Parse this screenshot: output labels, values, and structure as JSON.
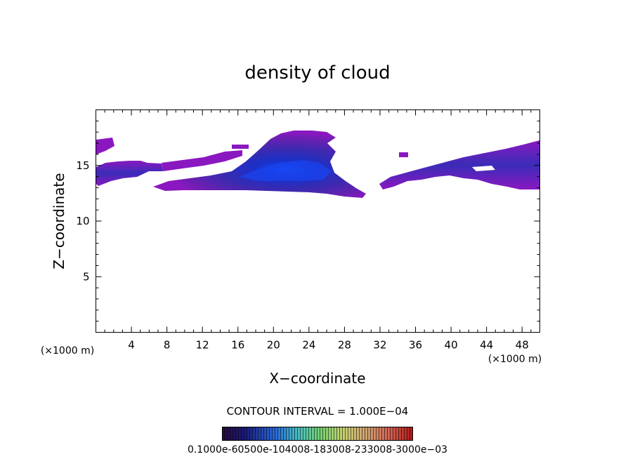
{
  "chart_data": {
    "type": "heatmap",
    "title": "density of cloud",
    "xlabel": "X−coordinate",
    "ylabel": "Z−coordinate",
    "x_unit_label": "(×1000 m)",
    "x_unit_label_2": "(×1000 m)",
    "xlim": [
      0,
      50
    ],
    "ylim": [
      0,
      20
    ],
    "xticks": [
      4,
      8,
      12,
      16,
      20,
      24,
      28,
      32,
      36,
      40,
      44,
      48
    ],
    "xtick_labels": [
      "4",
      "8",
      "12",
      "16",
      "20",
      "24",
      "28",
      "32",
      "36",
      "40",
      "44",
      "48"
    ],
    "yticks": [
      5,
      10,
      15
    ],
    "ytick_labels": [
      "5",
      "10",
      "15"
    ],
    "grid": false,
    "contour_interval_text": "CONTOUR INTERVAL = 1.000E−04",
    "colorbar_label_text": "0.1000e-60500e-104008-183008-233008-3000e−03",
    "colorbar_colors": [
      "#2a0a3a",
      "#1a1a7a",
      "#2a6ad8",
      "#48c0c0",
      "#7ad070",
      "#c8d070",
      "#d0a070",
      "#d06050",
      "#c83030",
      "#b01818"
    ],
    "cloud_regions": [
      {
        "name": "left-edge-band",
        "x": [
          0,
          7.8
        ],
        "z": [
          13.0,
          15.4
        ],
        "peak": 0.45
      },
      {
        "name": "left-top-patch",
        "x": [
          0,
          2.2
        ],
        "z": [
          16.3,
          17.4
        ],
        "peak": 0.3
      },
      {
        "name": "main-anvil",
        "x": [
          6.8,
          31.0
        ],
        "z": [
          12.3,
          17.9
        ],
        "peak": 1.0
      },
      {
        "name": "thin-tail-upper",
        "x": [
          8.0,
          17.5
        ],
        "z": [
          14.6,
          15.4
        ],
        "peak": 0.25
      },
      {
        "name": "small-cell-x15",
        "x": [
          14.6,
          16.2
        ],
        "z": [
          16.1,
          16.5
        ],
        "peak": 0.2
      },
      {
        "name": "small-cell-x34",
        "x": [
          34.0,
          35.0
        ],
        "z": [
          15.7,
          16.1
        ],
        "peak": 0.2
      },
      {
        "name": "right-band",
        "x": [
          31.8,
          50.0
        ],
        "z": [
          12.8,
          17.3
        ],
        "peak": 0.6
      }
    ],
    "max_value_relative": 1.0
  }
}
